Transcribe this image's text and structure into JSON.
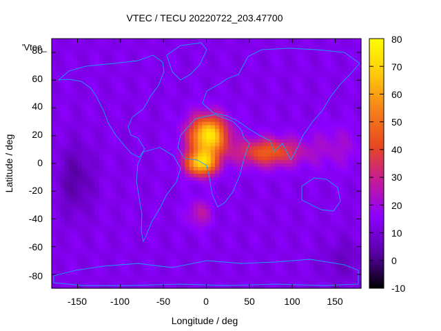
{
  "chart_data": {
    "type": "heatmap",
    "title": "VTEC / TECU 20220722_203.47700",
    "xlabel": "Longitude / deg",
    "ylabel": "Latitude / deg",
    "legend_entry": "'Vtec_",
    "xlim": [
      -180,
      180
    ],
    "ylim": [
      -90,
      90
    ],
    "xticks": [
      "-150",
      "-100",
      "-50",
      "0",
      "50",
      "100",
      "150"
    ],
    "yticks": [
      "80",
      "60",
      "40",
      "20",
      "0",
      "-20",
      "-40",
      "-60",
      "-80"
    ],
    "colorbar": {
      "range": [
        -10,
        80
      ],
      "ticks": [
        "80",
        "70",
        "60",
        "50",
        "40",
        "30",
        "20",
        "10",
        "0",
        "-10"
      ],
      "colormap": [
        "#000000",
        "#5a00a8",
        "#8c00ff",
        "#c41a9a",
        "#e8491f",
        "#f5801a",
        "#ffc90a",
        "#ffff00"
      ]
    },
    "background_value": 13,
    "features": [
      {
        "lon": 0,
        "lat": 22,
        "value": 78,
        "desc": "peak over Saharan Africa"
      },
      {
        "lon": -5,
        "lat": 0,
        "value": 72,
        "desc": "equatorial Atlantic / Gulf of Guinea"
      },
      {
        "lon": 80,
        "lat": 8,
        "value": 48,
        "desc": "Indian Ocean band"
      },
      {
        "lon": -10,
        "lat": -35,
        "value": 28,
        "desc": "South Atlantic extension"
      },
      {
        "lon": -150,
        "lat": -10,
        "value": 4,
        "desc": "central Pacific minimum"
      }
    ],
    "grid": false,
    "legend_position": "top-left"
  }
}
